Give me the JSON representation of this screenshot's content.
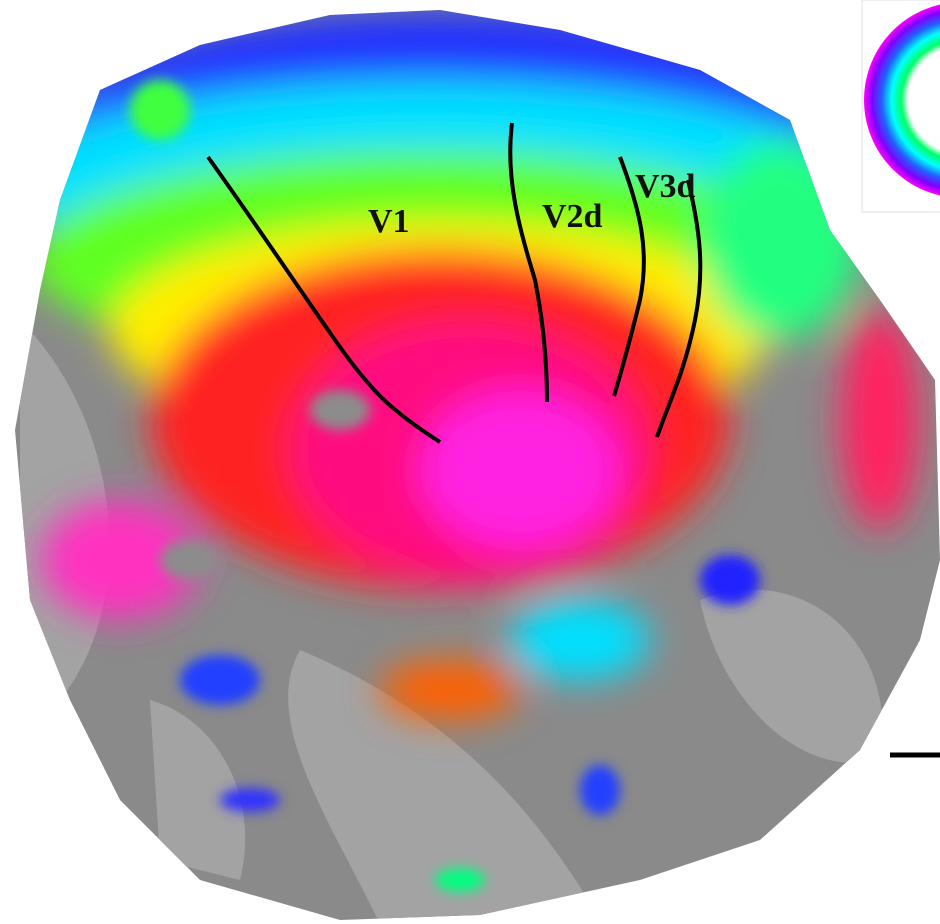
{
  "labels": [
    "V1",
    "V2d",
    "V3d"
  ]
}
